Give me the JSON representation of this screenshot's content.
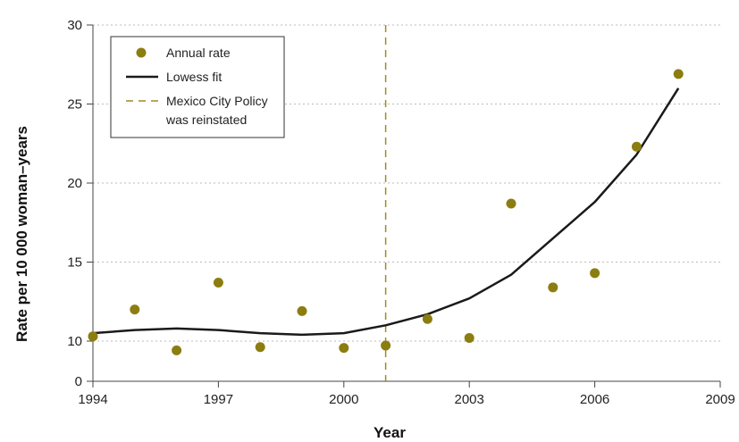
{
  "chart_data": {
    "type": "scatter",
    "xlabel": "Year",
    "ylabel": "Rate per 10 000 woman–years",
    "xlim": [
      1994,
      2009
    ],
    "x_ticks": [
      "1994",
      "1997",
      "2000",
      "2003",
      "2006",
      "2009"
    ],
    "y_ticks": [
      "0",
      "10",
      "15",
      "20",
      "25",
      "30"
    ],
    "grid": "horizontal dotted",
    "legend_position": "top-left",
    "colors": {
      "points": "#8c7d10",
      "fit": "#1a1a1a",
      "policy_line": "#a08a20",
      "grid": "#bbbbbb",
      "axis": "#444444"
    },
    "series": [
      {
        "name": "Annual rate",
        "kind": "points",
        "x": [
          1994,
          1995,
          1996,
          1997,
          1998,
          1999,
          2000,
          2001,
          2002,
          2003,
          2004,
          2005,
          2006,
          2007,
          2008
        ],
        "y": [
          10.3,
          12.0,
          7.7,
          13.7,
          8.5,
          11.9,
          8.3,
          8.9,
          11.4,
          10.2,
          18.7,
          13.4,
          14.3,
          22.3,
          26.9
        ]
      },
      {
        "name": "Lowess fit",
        "kind": "line",
        "x": [
          1994,
          1995,
          1996,
          1997,
          1998,
          1999,
          2000,
          2001,
          2002,
          2003,
          2004,
          2005,
          2006,
          2007,
          2008
        ],
        "y": [
          10.5,
          10.7,
          10.8,
          10.7,
          10.5,
          10.4,
          10.5,
          11.0,
          11.7,
          12.7,
          14.2,
          16.5,
          18.8,
          21.8,
          26.0
        ]
      }
    ],
    "annotations": [
      {
        "name": "Mexico City Policy was reinstated",
        "kind": "vline",
        "x": 2001
      }
    ],
    "legend": [
      {
        "label": "Annual rate",
        "marker": "dot"
      },
      {
        "label": "Lowess fit",
        "marker": "line"
      },
      {
        "label": "Mexico City Policy",
        "label2": "was reinstated",
        "marker": "dash"
      }
    ]
  }
}
